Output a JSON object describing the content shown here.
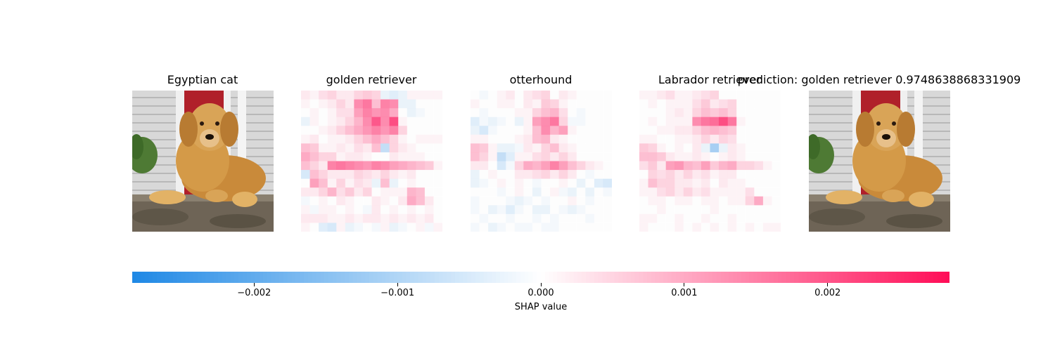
{
  "chart_data": {
    "type": "heatmap",
    "panel_titles": [
      "Egyptian cat",
      "golden retriever",
      "otterhound",
      "Labrador retriever",
      "prediction: golden retriever 0.9748638868331909"
    ],
    "colorbar": {
      "label": "SHAP value",
      "range": [
        -0.00285,
        0.00285
      ],
      "ticks": [
        -0.002,
        -0.001,
        0.0,
        0.001,
        0.002
      ],
      "tick_labels": [
        "−0.002",
        "−0.001",
        "0.000",
        "0.001",
        "0.002"
      ],
      "negative_color": "#1E88E5",
      "positive_color": "#FF0D57"
    },
    "heatmaps": {
      "golden retriever": [
        [
          0.1,
          0.05,
          0.15,
          0.2,
          0.1,
          0.1,
          0.2,
          0.25,
          0.2,
          -0.1,
          -0.15,
          -0.1,
          0.05,
          0.05,
          0.05,
          0.05
        ],
        [
          0.05,
          0.0,
          0.05,
          0.1,
          0.2,
          0.1,
          0.55,
          0.65,
          0.3,
          0.6,
          0.55,
          -0.1,
          -0.1,
          0.0,
          0.0,
          0.0
        ],
        [
          0.0,
          0.05,
          0.0,
          0.05,
          0.15,
          0.15,
          0.45,
          0.6,
          0.5,
          0.55,
          0.4,
          0.0,
          -0.1,
          -0.05,
          0.0,
          0.0
        ],
        [
          -0.1,
          0.05,
          0.0,
          0.05,
          0.1,
          0.2,
          0.35,
          0.55,
          0.8,
          0.55,
          0.85,
          0.05,
          0.0,
          0.0,
          0.0,
          0.0
        ],
        [
          0.0,
          0.0,
          0.05,
          0.1,
          0.2,
          0.3,
          0.4,
          0.5,
          0.6,
          0.5,
          0.6,
          0.2,
          0.0,
          0.0,
          0.0,
          0.0
        ],
        [
          0.05,
          0.1,
          0.0,
          0.05,
          0.05,
          0.1,
          0.2,
          0.3,
          0.4,
          0.3,
          0.2,
          0.05,
          0.0,
          0.05,
          0.05,
          0.05
        ],
        [
          0.3,
          0.25,
          0.05,
          0.05,
          0.1,
          0.05,
          0.15,
          0.1,
          0.3,
          -0.3,
          0.2,
          0.1,
          0.05,
          0.0,
          0.0,
          0.0
        ],
        [
          0.4,
          0.3,
          0.2,
          0.2,
          0.05,
          0.1,
          0.1,
          0.05,
          0.0,
          0.0,
          0.1,
          0.05,
          0.05,
          0.05,
          0.0,
          0.0
        ],
        [
          0.3,
          0.2,
          0.1,
          0.6,
          0.65,
          0.6,
          0.55,
          0.5,
          0.6,
          0.55,
          0.45,
          0.4,
          0.35,
          0.3,
          0.25,
          0.05
        ],
        [
          -0.2,
          0.3,
          0.2,
          0.1,
          0.1,
          0.1,
          0.2,
          0.15,
          0.1,
          0.2,
          0.1,
          0.05,
          0.1,
          0.0,
          0.0,
          0.0
        ],
        [
          0.0,
          0.45,
          0.3,
          0.05,
          0.2,
          0.05,
          0.15,
          0.1,
          -0.1,
          0.3,
          -0.1,
          0.0,
          0.05,
          0.0,
          0.0,
          0.0
        ],
        [
          0.1,
          0.1,
          0.2,
          0.35,
          0.15,
          0.25,
          0.1,
          0.2,
          0.0,
          0.05,
          0.05,
          0.05,
          0.35,
          0.3,
          0.0,
          0.0
        ],
        [
          -0.05,
          0.0,
          0.05,
          0.0,
          0.1,
          0.05,
          0.0,
          0.0,
          0.1,
          0.05,
          0.0,
          0.1,
          0.4,
          0.3,
          0.1,
          0.0
        ],
        [
          0.05,
          -0.05,
          0.05,
          0.05,
          0.0,
          0.05,
          0.0,
          -0.05,
          0.1,
          0.0,
          0.05,
          0.0,
          0.05,
          0.0,
          0.05,
          0.0
        ],
        [
          0.1,
          0.1,
          0.1,
          0.05,
          0.05,
          0.1,
          0.05,
          0.1,
          0.1,
          0.05,
          0.1,
          0.05,
          0.1,
          0.05,
          0.1,
          0.0
        ],
        [
          0.05,
          0.0,
          -0.15,
          -0.2,
          0.05,
          -0.1,
          -0.05,
          0.0,
          -0.05,
          0.05,
          -0.1,
          -0.05,
          0.0,
          0.05,
          -0.05,
          0.05
        ]
      ],
      "otterhound": [
        [
          0.0,
          -0.05,
          0.0,
          0.05,
          0.1,
          0.0,
          0.1,
          0.15,
          0.2,
          0.0,
          0.1,
          0.05,
          0.0,
          0.0,
          0.0,
          0.0
        ],
        [
          0.05,
          0.0,
          0.0,
          0.05,
          0.05,
          0.0,
          0.1,
          0.05,
          0.25,
          0.2,
          0.05,
          0.0,
          0.0,
          0.0,
          0.0,
          0.0
        ],
        [
          0.0,
          -0.05,
          0.0,
          0.0,
          0.0,
          0.05,
          0.05,
          0.2,
          0.3,
          0.35,
          0.15,
          0.0,
          -0.05,
          0.0,
          0.0,
          0.0
        ],
        [
          -0.15,
          -0.05,
          -0.1,
          -0.05,
          0.0,
          -0.1,
          0.05,
          0.45,
          0.55,
          0.65,
          0.2,
          -0.05,
          -0.05,
          0.0,
          0.0,
          0.0
        ],
        [
          -0.1,
          -0.2,
          -0.05,
          0.0,
          0.0,
          0.0,
          0.05,
          0.3,
          0.55,
          0.35,
          0.45,
          0.05,
          0.0,
          0.0,
          0.0,
          0.0
        ],
        [
          0.05,
          0.05,
          0.0,
          0.0,
          0.0,
          0.05,
          0.1,
          0.3,
          0.35,
          0.1,
          0.05,
          0.0,
          0.0,
          0.0,
          0.0,
          0.0
        ],
        [
          0.3,
          0.25,
          0.05,
          -0.1,
          -0.1,
          -0.05,
          0.1,
          0.05,
          0.2,
          0.3,
          0.1,
          0.05,
          0.0,
          0.0,
          0.0,
          0.0
        ],
        [
          0.3,
          0.2,
          0.05,
          -0.3,
          -0.15,
          0.05,
          0.05,
          0.15,
          0.2,
          0.1,
          0.2,
          0.1,
          0.0,
          0.0,
          0.0,
          0.0
        ],
        [
          0.1,
          0.1,
          0.0,
          -0.2,
          -0.05,
          0.2,
          0.4,
          0.35,
          0.45,
          0.6,
          0.45,
          0.3,
          0.2,
          0.1,
          0.05,
          0.0
        ],
        [
          -0.1,
          0.0,
          0.05,
          0.0,
          0.0,
          0.1,
          0.1,
          0.15,
          0.2,
          0.1,
          0.2,
          0.1,
          0.0,
          -0.05,
          0.0,
          0.0
        ],
        [
          -0.1,
          -0.05,
          0.0,
          0.05,
          0.0,
          0.05,
          0.0,
          -0.05,
          0.0,
          0.0,
          0.05,
          0.0,
          -0.1,
          0.0,
          -0.15,
          -0.2
        ],
        [
          0.0,
          0.0,
          0.0,
          -0.05,
          0.0,
          0.05,
          0.0,
          -0.1,
          0.0,
          0.05,
          -0.05,
          -0.1,
          0.0,
          -0.1,
          0.0,
          -0.05
        ],
        [
          -0.05,
          0.0,
          0.0,
          0.0,
          -0.05,
          -0.1,
          -0.05,
          0.0,
          -0.05,
          0.0,
          0.0,
          0.05,
          0.0,
          -0.05,
          0.0,
          0.0
        ],
        [
          -0.05,
          0.0,
          -0.1,
          -0.05,
          -0.15,
          -0.05,
          0.0,
          -0.1,
          -0.1,
          0.0,
          -0.05,
          -0.1,
          -0.05,
          0.0,
          0.0,
          0.0
        ],
        [
          0.0,
          -0.05,
          0.0,
          0.0,
          -0.05,
          0.0,
          0.0,
          -0.05,
          0.0,
          -0.05,
          0.0,
          0.0,
          0.0,
          -0.05,
          0.0,
          0.0
        ],
        [
          -0.05,
          0.0,
          -0.1,
          -0.05,
          0.0,
          -0.05,
          -0.05,
          0.0,
          -0.05,
          -0.05,
          0.0,
          0.0,
          0.0,
          0.0,
          0.0,
          0.0
        ]
      ],
      "Labrador retriever": [
        [
          0.05,
          0.05,
          0.1,
          0.15,
          0.05,
          0.05,
          0.1,
          0.15,
          0.2,
          0.0,
          0.0,
          0.0,
          0.0,
          0.0,
          0.0,
          0.0
        ],
        [
          0.0,
          0.05,
          0.0,
          0.05,
          0.05,
          0.05,
          0.15,
          0.25,
          0.1,
          0.15,
          0.2,
          0.0,
          0.0,
          0.0,
          0.0,
          0.0
        ],
        [
          0.0,
          0.0,
          0.0,
          0.05,
          0.1,
          0.05,
          0.2,
          0.3,
          0.25,
          0.3,
          0.2,
          0.0,
          0.0,
          0.0,
          0.0,
          0.0
        ],
        [
          0.0,
          0.05,
          0.0,
          0.05,
          0.05,
          0.05,
          0.55,
          0.65,
          0.7,
          0.85,
          0.65,
          0.05,
          0.0,
          0.0,
          0.0,
          0.0
        ],
        [
          0.0,
          0.0,
          0.05,
          0.05,
          0.1,
          0.1,
          0.2,
          0.3,
          0.35,
          0.3,
          0.25,
          0.0,
          0.0,
          0.0,
          0.0,
          0.0
        ],
        [
          0.05,
          0.05,
          0.0,
          0.0,
          0.05,
          0.05,
          0.1,
          0.2,
          0.1,
          0.2,
          0.15,
          0.0,
          0.0,
          0.0,
          0.0,
          0.0
        ],
        [
          0.25,
          0.2,
          0.05,
          0.0,
          0.05,
          0.0,
          0.1,
          -0.1,
          -0.45,
          -0.1,
          0.1,
          0.05,
          0.0,
          0.0,
          0.0,
          0.0
        ],
        [
          0.3,
          0.3,
          0.25,
          0.1,
          0.05,
          0.05,
          0.1,
          0.05,
          0.0,
          0.05,
          0.1,
          0.05,
          0.0,
          0.0,
          0.0,
          0.0
        ],
        [
          0.15,
          0.25,
          0.1,
          0.45,
          0.5,
          0.35,
          0.3,
          0.45,
          0.25,
          0.35,
          0.4,
          0.2,
          0.2,
          0.15,
          0.05,
          0.0
        ],
        [
          0.0,
          0.2,
          0.15,
          0.2,
          0.1,
          0.2,
          0.1,
          0.15,
          0.05,
          0.1,
          0.1,
          0.0,
          0.0,
          0.0,
          0.0,
          0.0
        ],
        [
          0.05,
          0.3,
          0.2,
          0.2,
          0.1,
          0.1,
          0.05,
          0.1,
          0.0,
          0.1,
          0.05,
          0.05,
          0.0,
          0.0,
          0.0,
          0.0
        ],
        [
          0.05,
          0.05,
          0.15,
          0.2,
          0.1,
          0.2,
          0.1,
          0.15,
          0.05,
          0.05,
          0.05,
          0.05,
          0.15,
          0.0,
          0.0,
          0.0
        ],
        [
          0.0,
          0.05,
          0.05,
          0.0,
          0.05,
          0.05,
          0.0,
          0.05,
          0.05,
          0.0,
          0.05,
          0.05,
          0.2,
          0.4,
          0.05,
          0.0
        ],
        [
          0.0,
          0.0,
          0.05,
          0.0,
          0.0,
          0.0,
          0.0,
          0.0,
          0.05,
          0.0,
          0.0,
          0.0,
          0.0,
          0.0,
          0.0,
          0.0
        ],
        [
          0.05,
          0.05,
          0.0,
          0.0,
          0.05,
          0.0,
          0.0,
          0.05,
          0.0,
          0.0,
          0.05,
          0.0,
          0.0,
          0.0,
          0.0,
          0.0
        ],
        [
          0.05,
          0.0,
          0.0,
          0.0,
          0.05,
          0.0,
          0.05,
          0.0,
          0.05,
          0.0,
          0.05,
          0.0,
          0.05,
          0.0,
          0.05,
          0.05
        ]
      ]
    }
  },
  "panels": {
    "egyptian_cat": {
      "title": "Egyptian cat"
    },
    "golden_retriever": {
      "title": "golden retriever"
    },
    "otterhound": {
      "title": "otterhound"
    },
    "labrador_retriever": {
      "title": "Labrador retriever"
    },
    "prediction": {
      "title": "prediction: golden retriever 0.9748638868331909"
    }
  },
  "colors": {
    "photo_background_siding": "#D8D8D8",
    "photo_door_red": "#B0202A",
    "photo_fur": "#C98A3A",
    "photo_stone": "#6E6456",
    "photo_plant": "#4E7A34"
  }
}
